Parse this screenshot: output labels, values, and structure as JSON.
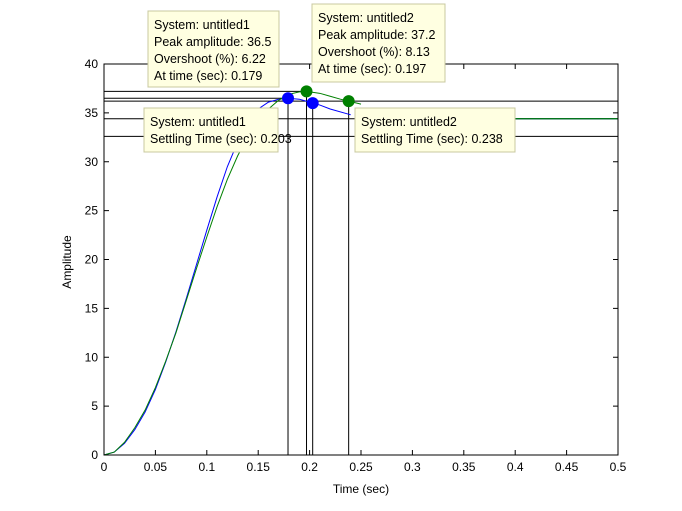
{
  "chart_data": {
    "type": "line",
    "title": "",
    "xlabel": "Time (sec)",
    "ylabel": "Amplitude",
    "xlim": [
      0,
      0.5
    ],
    "ylim": [
      0,
      40
    ],
    "xticks": [
      "0",
      "0.05",
      "0.1",
      "0.15",
      "0.2",
      "0.25",
      "0.3",
      "0.35",
      "0.4",
      "0.45",
      "0.5"
    ],
    "yticks": [
      "0",
      "5",
      "10",
      "15",
      "20",
      "25",
      "30",
      "35",
      "40"
    ],
    "grid": false,
    "legend": "none",
    "series": [
      {
        "system": "untitled1",
        "color": "#0000ff",
        "x": [
          0,
          0.01,
          0.02,
          0.03,
          0.04,
          0.05,
          0.06,
          0.07,
          0.08,
          0.09,
          0.1,
          0.11,
          0.12,
          0.13,
          0.14,
          0.15,
          0.16,
          0.17,
          0.179,
          0.19,
          0.2,
          0.203,
          0.21,
          0.22,
          0.24
        ],
        "y": [
          0,
          0.3,
          1.2,
          2.6,
          4.4,
          6.7,
          9.5,
          12.6,
          16.0,
          19.5,
          23.0,
          26.4,
          29.5,
          32.0,
          34.0,
          35.4,
          36.1,
          36.4,
          36.5,
          36.4,
          36.1,
          36.0,
          35.8,
          35.4,
          34.8
        ],
        "peak": {
          "time": 0.179,
          "amplitude": 36.5
        },
        "settling": {
          "time": 0.203,
          "amplitude": 36.0
        },
        "settle_band": [
          32.6,
          36.0
        ]
      },
      {
        "system": "untitled2",
        "color": "#008000",
        "x": [
          0,
          0.01,
          0.02,
          0.03,
          0.04,
          0.05,
          0.06,
          0.07,
          0.08,
          0.09,
          0.1,
          0.11,
          0.12,
          0.13,
          0.14,
          0.15,
          0.16,
          0.17,
          0.18,
          0.19,
          0.197,
          0.21,
          0.22,
          0.23,
          0.238,
          0.25
        ],
        "y": [
          0,
          0.3,
          1.3,
          2.8,
          4.6,
          6.9,
          9.6,
          12.5,
          15.8,
          19.1,
          22.3,
          25.4,
          28.2,
          30.6,
          32.6,
          34.2,
          35.4,
          36.3,
          36.9,
          37.15,
          37.2,
          37.0,
          36.7,
          36.4,
          36.2,
          35.9
        ],
        "peak": {
          "time": 0.197,
          "amplitude": 37.2
        },
        "settling": {
          "time": 0.238,
          "amplitude": 36.2
        },
        "settle_band": [
          36.2,
          36.2
        ]
      }
    ],
    "tail_segments": [
      {
        "color": "#0000ff",
        "x": [
          0.25,
          0.5
        ],
        "y": [
          34.4,
          34.4
        ]
      },
      {
        "color": "#008000",
        "x": [
          0.33,
          0.5
        ],
        "y": [
          34.4,
          34.4
        ]
      }
    ],
    "reference_lines": [
      {
        "y": 37.2,
        "x0": 0,
        "x1": 0.197
      },
      {
        "y": 36.5,
        "x0": 0,
        "x1": 0.179
      },
      {
        "y": 36.2,
        "x0": 0,
        "x1": 0.5
      },
      {
        "y": 34.4,
        "x0": 0,
        "x1": 0.5
      },
      {
        "y": 32.6,
        "x0": 0,
        "x1": 0.5
      }
    ],
    "datatips": [
      {
        "lines": [
          "System: untitled1",
          "Peak amplitude: 36.5",
          "Overshoot (%): 6.22",
          "At time (sec): 0.179"
        ]
      },
      {
        "lines": [
          "System: untitled2",
          "Peak amplitude: 37.2",
          "Overshoot (%): 8.13",
          "At time (sec): 0.197"
        ]
      },
      {
        "lines": [
          "System: untitled1",
          "Settling Time (sec): 0.203"
        ]
      },
      {
        "lines": [
          "System: untitled2",
          "Settling Time (sec): 0.238"
        ]
      }
    ]
  }
}
